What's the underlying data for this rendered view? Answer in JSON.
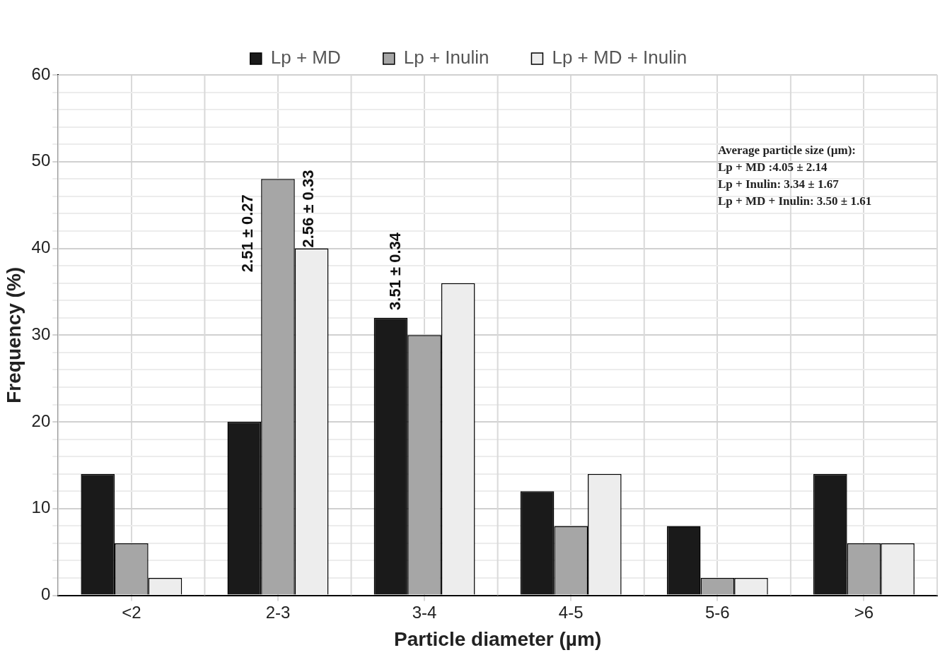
{
  "chart_data": {
    "type": "bar",
    "xlabel": "Particle diameter (µm)",
    "ylabel": "Frequency (%)",
    "categories": [
      "<2",
      "2-3",
      "3-4",
      "4-5",
      "5-6",
      ">6"
    ],
    "series": [
      {
        "name": "Lp + MD",
        "color": "#1a1a1a",
        "values": [
          14,
          20,
          32,
          12,
          8,
          14
        ]
      },
      {
        "name": "Lp + Inulin",
        "color": "#a6a6a6",
        "values": [
          6,
          48,
          30,
          8,
          2,
          6
        ]
      },
      {
        "name": "Lp + MD + Inulin",
        "color": "#ededed",
        "values": [
          2,
          40,
          36,
          14,
          2,
          6
        ]
      }
    ],
    "ylim": [
      0,
      60
    ],
    "yticks": [
      0,
      {
        "value": 2,
        "label": null
      },
      {
        "value": 4,
        "label": null
      },
      {
        "value": 6,
        "label": null
      },
      {
        "value": 8,
        "label": null
      },
      10,
      {
        "value": 12,
        "label": null
      },
      {
        "value": 14,
        "label": null
      },
      {
        "value": 16,
        "label": null
      },
      {
        "value": 18,
        "label": null
      },
      20,
      {
        "value": 22,
        "label": null
      },
      {
        "value": 24,
        "label": null
      },
      {
        "value": 26,
        "label": null
      },
      {
        "value": 28,
        "label": null
      },
      30,
      {
        "value": 32,
        "label": null
      },
      {
        "value": 34,
        "label": null
      },
      {
        "value": 36,
        "label": null
      },
      {
        "value": 38,
        "label": null
      },
      40,
      {
        "value": 42,
        "label": null
      },
      {
        "value": 44,
        "label": null
      },
      {
        "value": 46,
        "label": null
      },
      {
        "value": 48,
        "label": null
      },
      50,
      {
        "value": 52,
        "label": null
      },
      {
        "value": 54,
        "label": null
      },
      {
        "value": 56,
        "label": null
      },
      {
        "value": 58,
        "label": null
      },
      60
    ],
    "grid": true,
    "legend": "top",
    "annotations": [
      "2.51 ± 0.27",
      "2.56 ± 0.33",
      "3.51 ± 0.34",
      "Average particle size (µm):",
      "Lp + MD :4.05 ± 2.14",
      "Lp + Inulin: 3.34 ± 1.67",
      "Lp + MD + Inulin: 3.50 ± 1.61"
    ]
  }
}
